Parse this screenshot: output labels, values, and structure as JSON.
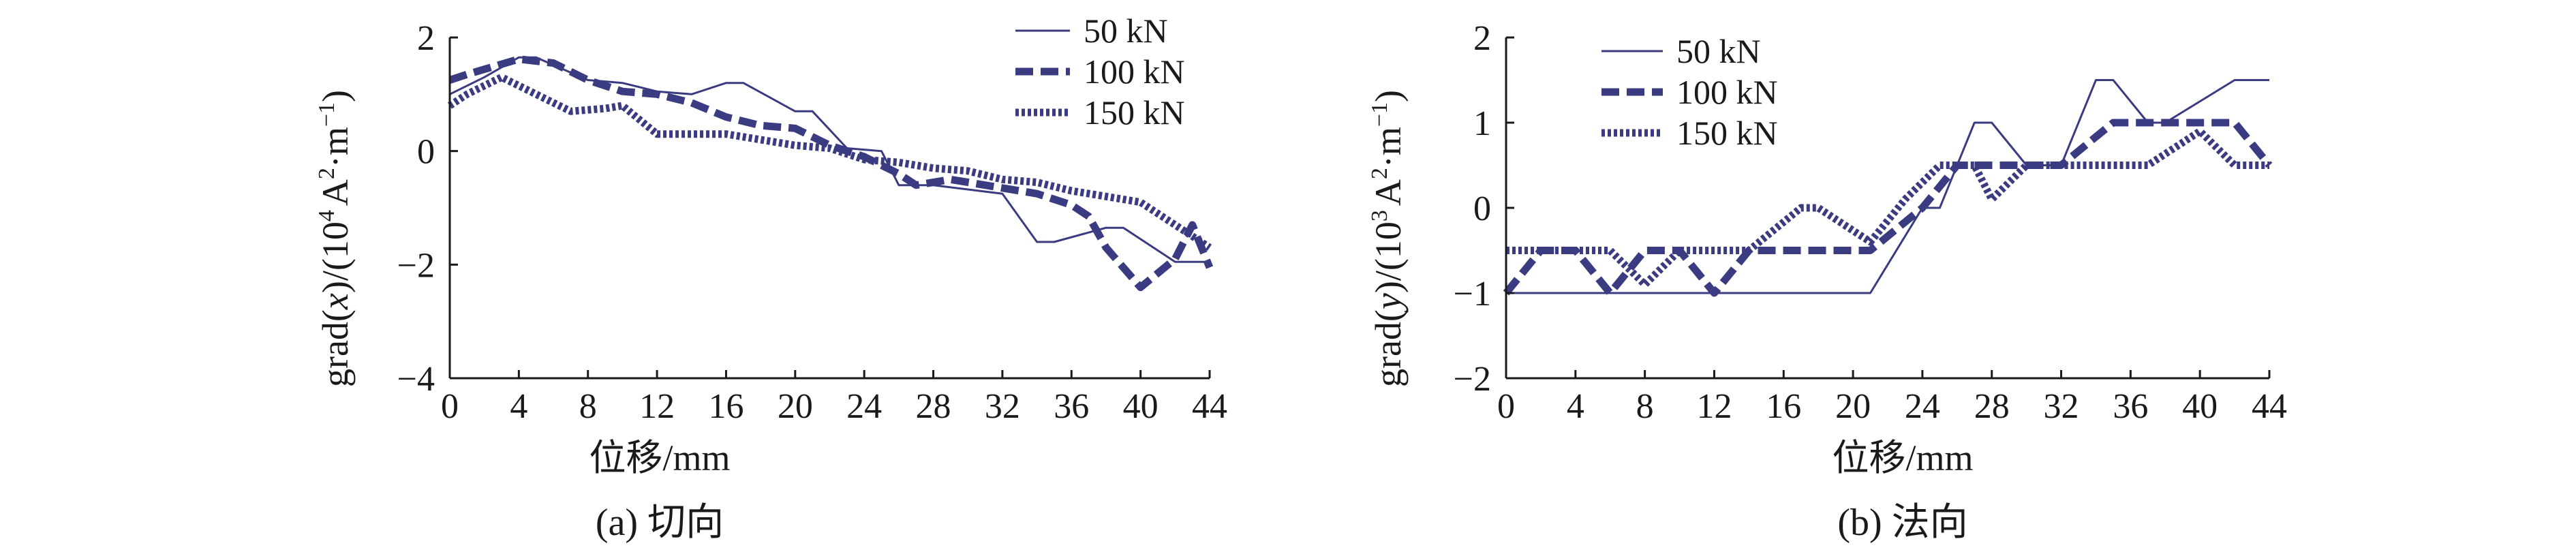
{
  "colors": {
    "series": "#3b3b82",
    "axis": "#1a1a1a"
  },
  "chart_data": [
    {
      "type": "line",
      "panel": "a",
      "caption": "(a) 切向",
      "xlabel": "位移/mm",
      "ylabel_parts": {
        "pre": "grad(",
        "var": "x",
        "mid": ")/(10",
        "exp": "4",
        "unit": "A",
        "unitexp": "2",
        "tail": "·m",
        "tailexp": "−1",
        "close": ")"
      },
      "xlim": [
        0,
        44
      ],
      "ylim": [
        -4,
        2
      ],
      "xticks": [
        0,
        4,
        8,
        12,
        16,
        20,
        24,
        28,
        32,
        36,
        40,
        44
      ],
      "xtick_labels": [
        "0",
        "4",
        "8",
        "12",
        "16",
        "20",
        "24",
        "28",
        "32",
        "36",
        "40",
        "44"
      ],
      "yticks": [
        -4,
        -2,
        0,
        2
      ],
      "ytick_labels": [
        "−4",
        "−2",
        "0",
        "2"
      ],
      "legend_position": "top-right",
      "series": [
        {
          "name": "50 kN",
          "style": "solid",
          "points": [
            [
              0,
              1.0
            ],
            [
              2,
              1.3
            ],
            [
              4,
              1.65
            ],
            [
              5,
              1.65
            ],
            [
              8,
              1.25
            ],
            [
              10,
              1.2
            ],
            [
              12,
              1.05
            ],
            [
              14,
              1.0
            ],
            [
              16,
              1.2
            ],
            [
              17,
              1.2
            ],
            [
              20,
              0.7
            ],
            [
              21,
              0.7
            ],
            [
              23,
              0.05
            ],
            [
              25,
              0.0
            ],
            [
              26,
              -0.6
            ],
            [
              28,
              -0.6
            ],
            [
              32,
              -0.75
            ],
            [
              34,
              -1.6
            ],
            [
              35,
              -1.6
            ],
            [
              38,
              -1.35
            ],
            [
              39,
              -1.35
            ],
            [
              42,
              -1.95
            ],
            [
              44,
              -1.95
            ]
          ]
        },
        {
          "name": "100 kN",
          "style": "dashed",
          "points": [
            [
              0,
              1.25
            ],
            [
              1,
              1.35
            ],
            [
              4,
              1.62
            ],
            [
              6,
              1.55
            ],
            [
              8,
              1.25
            ],
            [
              10,
              1.05
            ],
            [
              12,
              1.0
            ],
            [
              14,
              0.85
            ],
            [
              16,
              0.6
            ],
            [
              18,
              0.45
            ],
            [
              20,
              0.4
            ],
            [
              22,
              0.1
            ],
            [
              24,
              -0.1
            ],
            [
              26,
              -0.4
            ],
            [
              27,
              -0.6
            ],
            [
              29,
              -0.5
            ],
            [
              31,
              -0.6
            ],
            [
              34,
              -0.75
            ],
            [
              36,
              -0.95
            ],
            [
              37,
              -1.15
            ],
            [
              38,
              -1.7
            ],
            [
              40,
              -2.4
            ],
            [
              42,
              -1.9
            ],
            [
              43,
              -1.3
            ],
            [
              44,
              -2.05
            ]
          ]
        },
        {
          "name": "150 kN",
          "style": "dotted",
          "points": [
            [
              0,
              0.8
            ],
            [
              1,
              1.0
            ],
            [
              3,
              1.3
            ],
            [
              5,
              1.0
            ],
            [
              7,
              0.7
            ],
            [
              9,
              0.75
            ],
            [
              10,
              0.8
            ],
            [
              12,
              0.3
            ],
            [
              14,
              0.3
            ],
            [
              16,
              0.3
            ],
            [
              18,
              0.2
            ],
            [
              20,
              0.1
            ],
            [
              22,
              0.05
            ],
            [
              24,
              -0.15
            ],
            [
              26,
              -0.2
            ],
            [
              28,
              -0.3
            ],
            [
              30,
              -0.35
            ],
            [
              32,
              -0.5
            ],
            [
              34,
              -0.55
            ],
            [
              36,
              -0.7
            ],
            [
              38,
              -0.8
            ],
            [
              40,
              -0.9
            ],
            [
              42,
              -1.3
            ],
            [
              44,
              -1.7
            ]
          ]
        }
      ]
    },
    {
      "type": "line",
      "panel": "b",
      "caption": "(b) 法向",
      "xlabel": "位移/mm",
      "ylabel_parts": {
        "pre": "grad(",
        "var": "y",
        "mid": ")/(10",
        "exp": "3",
        "unit": "A",
        "unitexp": "2",
        "tail": "·m",
        "tailexp": "−1",
        "close": ")"
      },
      "xlim": [
        0,
        44
      ],
      "ylim": [
        -2,
        2
      ],
      "xticks": [
        0,
        4,
        8,
        12,
        16,
        20,
        24,
        28,
        32,
        36,
        40,
        44
      ],
      "xtick_labels": [
        "0",
        "4",
        "8",
        "12",
        "16",
        "20",
        "24",
        "28",
        "32",
        "36",
        "40",
        "44"
      ],
      "yticks": [
        -2,
        -1,
        0,
        1,
        2
      ],
      "ytick_labels": [
        "−2",
        "−1",
        "0",
        "1",
        "2"
      ],
      "legend_position": "top-left",
      "series": [
        {
          "name": "50 kN",
          "style": "solid",
          "points": [
            [
              0,
              -1.0
            ],
            [
              21,
              -1.0
            ],
            [
              24,
              0.0
            ],
            [
              25,
              0.0
            ],
            [
              27,
              1.0
            ],
            [
              28,
              1.0
            ],
            [
              30,
              0.5
            ],
            [
              32,
              0.5
            ],
            [
              34,
              1.5
            ],
            [
              35,
              1.5
            ],
            [
              37,
              1.0
            ],
            [
              38,
              1.0
            ],
            [
              42,
              1.5
            ],
            [
              44,
              1.5
            ]
          ]
        },
        {
          "name": "100 kN",
          "style": "dashed",
          "points": [
            [
              0,
              -1.0
            ],
            [
              2,
              -0.5
            ],
            [
              4,
              -0.5
            ],
            [
              6,
              -1.0
            ],
            [
              8,
              -0.5
            ],
            [
              10,
              -0.5
            ],
            [
              12,
              -1.0
            ],
            [
              14,
              -0.5
            ],
            [
              21,
              -0.5
            ],
            [
              24,
              0.0
            ],
            [
              26,
              0.5
            ],
            [
              32,
              0.5
            ],
            [
              35,
              1.0
            ],
            [
              40,
              1.0
            ],
            [
              42,
              1.0
            ],
            [
              44,
              0.5
            ]
          ]
        },
        {
          "name": "150 kN",
          "style": "dotted",
          "points": [
            [
              0,
              -0.5
            ],
            [
              6,
              -0.5
            ],
            [
              8,
              -0.9
            ],
            [
              10,
              -0.5
            ],
            [
              14,
              -0.5
            ],
            [
              17,
              0.0
            ],
            [
              18,
              0.0
            ],
            [
              21,
              -0.4
            ],
            [
              23,
              0.1
            ],
            [
              24,
              0.3
            ],
            [
              25,
              0.5
            ],
            [
              27,
              0.5
            ],
            [
              28,
              0.1
            ],
            [
              30,
              0.5
            ],
            [
              37,
              0.5
            ],
            [
              40,
              0.9
            ],
            [
              42,
              0.5
            ],
            [
              44,
              0.5
            ]
          ]
        }
      ]
    }
  ]
}
